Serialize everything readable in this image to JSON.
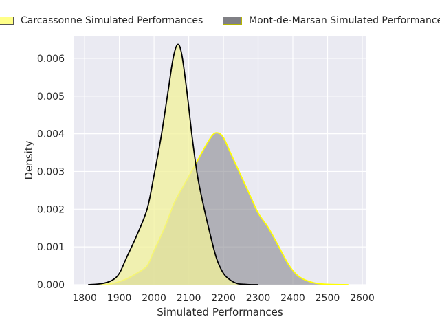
{
  "chart_data": {
    "type": "area",
    "xlabel": "Simulated Performances",
    "ylabel": "Density",
    "xlim": [
      1770,
      2610
    ],
    "ylim": [
      0,
      0.0066
    ],
    "x_ticks": [
      1800,
      1900,
      2000,
      2100,
      2200,
      2300,
      2400,
      2500,
      2600
    ],
    "y_ticks": [
      0.0,
      0.001,
      0.002,
      0.003,
      0.004,
      0.005,
      0.006
    ],
    "y_tick_labels": [
      "0.000",
      "0.001",
      "0.002",
      "0.003",
      "0.004",
      "0.005",
      "0.006"
    ],
    "grid": true,
    "legend_position": "top",
    "series": [
      {
        "name": "Carcassonne Simulated Performances",
        "fill": "#f2f29a",
        "fill_opacity": 0.75,
        "stroke": "#000000",
        "x": [
          1810,
          1850,
          1880,
          1900,
          1920,
          1950,
          1980,
          2000,
          2020,
          2040,
          2055,
          2068,
          2080,
          2095,
          2110,
          2125,
          2140,
          2160,
          2180,
          2200,
          2220,
          2240,
          2260,
          2280,
          2300
        ],
        "y": [
          0.0,
          3e-05,
          0.00012,
          0.0003,
          0.0007,
          0.0013,
          0.002,
          0.0029,
          0.0039,
          0.0051,
          0.006,
          0.00637,
          0.0061,
          0.0051,
          0.0039,
          0.0029,
          0.0022,
          0.0014,
          0.0007,
          0.0003,
          0.00012,
          3e-05,
          1e-05,
          0.0,
          0.0
        ]
      },
      {
        "name": "Mont-de-Marsan Simulated Performances",
        "fill": "#7f7f86",
        "fill_opacity": 0.55,
        "stroke": "#ffff00",
        "x": [
          1840,
          1880,
          1920,
          1950,
          1980,
          2000,
          2030,
          2060,
          2090,
          2120,
          2150,
          2170,
          2185,
          2200,
          2220,
          2250,
          2280,
          2300,
          2330,
          2360,
          2390,
          2420,
          2460,
          2500,
          2560
        ],
        "y": [
          0.0,
          3e-05,
          0.00015,
          0.0003,
          0.0005,
          0.0009,
          0.0015,
          0.0022,
          0.0027,
          0.0032,
          0.0037,
          0.00398,
          0.00402,
          0.0039,
          0.0035,
          0.0029,
          0.0023,
          0.0019,
          0.0015,
          0.001,
          0.0005,
          0.0002,
          5e-05,
          1e-05,
          0.0
        ]
      }
    ]
  }
}
